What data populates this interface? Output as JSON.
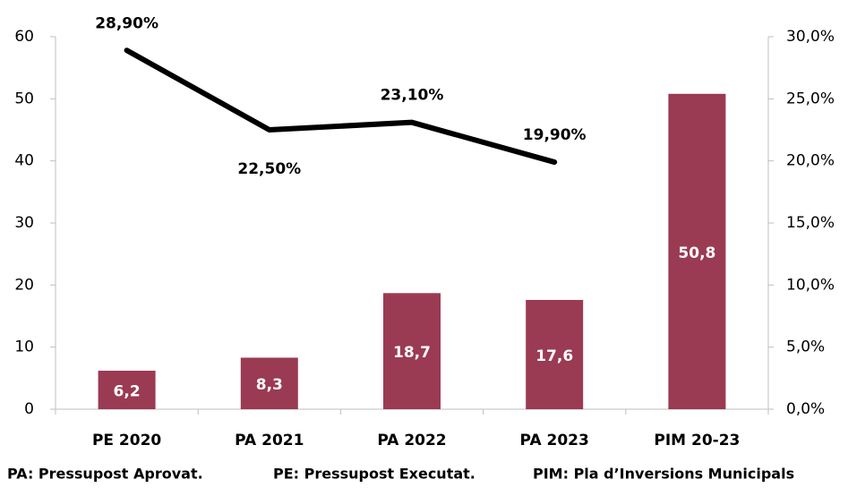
{
  "chart_data": {
    "type": "bar+line",
    "categories": [
      "PE 2020",
      "PA 2021",
      "PA 2022",
      "PA 2023",
      "PIM 20-23"
    ],
    "series": [
      {
        "type": "bar",
        "color": "#9b3a53",
        "values": [
          6.2,
          8.3,
          18.7,
          17.6,
          50.8
        ],
        "value_labels": [
          "6,2",
          "8,3",
          "18,7",
          "17,6",
          "50,8"
        ]
      },
      {
        "type": "line",
        "color": "#000000",
        "axis": "y2",
        "values": [
          28.9,
          22.5,
          23.1,
          19.9,
          null
        ],
        "value_labels": [
          "28,90%",
          "22,50%",
          "23,10%",
          "19,90%",
          null
        ]
      }
    ],
    "ylim": [
      0,
      60
    ],
    "yticks": [
      0,
      10,
      20,
      30,
      40,
      50,
      60
    ],
    "y2lim": [
      0,
      30
    ],
    "y2ticks": [
      {
        "value": 0,
        "label": "0,0%"
      },
      {
        "value": 5,
        "label": "5,0%"
      },
      {
        "value": 10,
        "label": "10,0%"
      },
      {
        "value": 15,
        "label": "15,0%"
      },
      {
        "value": 20,
        "label": "20,0%"
      },
      {
        "value": 25,
        "label": "25,0%"
      },
      {
        "value": 30,
        "label": "30,0%"
      }
    ],
    "notes": [
      "PA: Pressupost Aprovat.",
      "PE: Pressupost Executat.",
      "PIM: Pla d’Inversions Municipals"
    ]
  }
}
